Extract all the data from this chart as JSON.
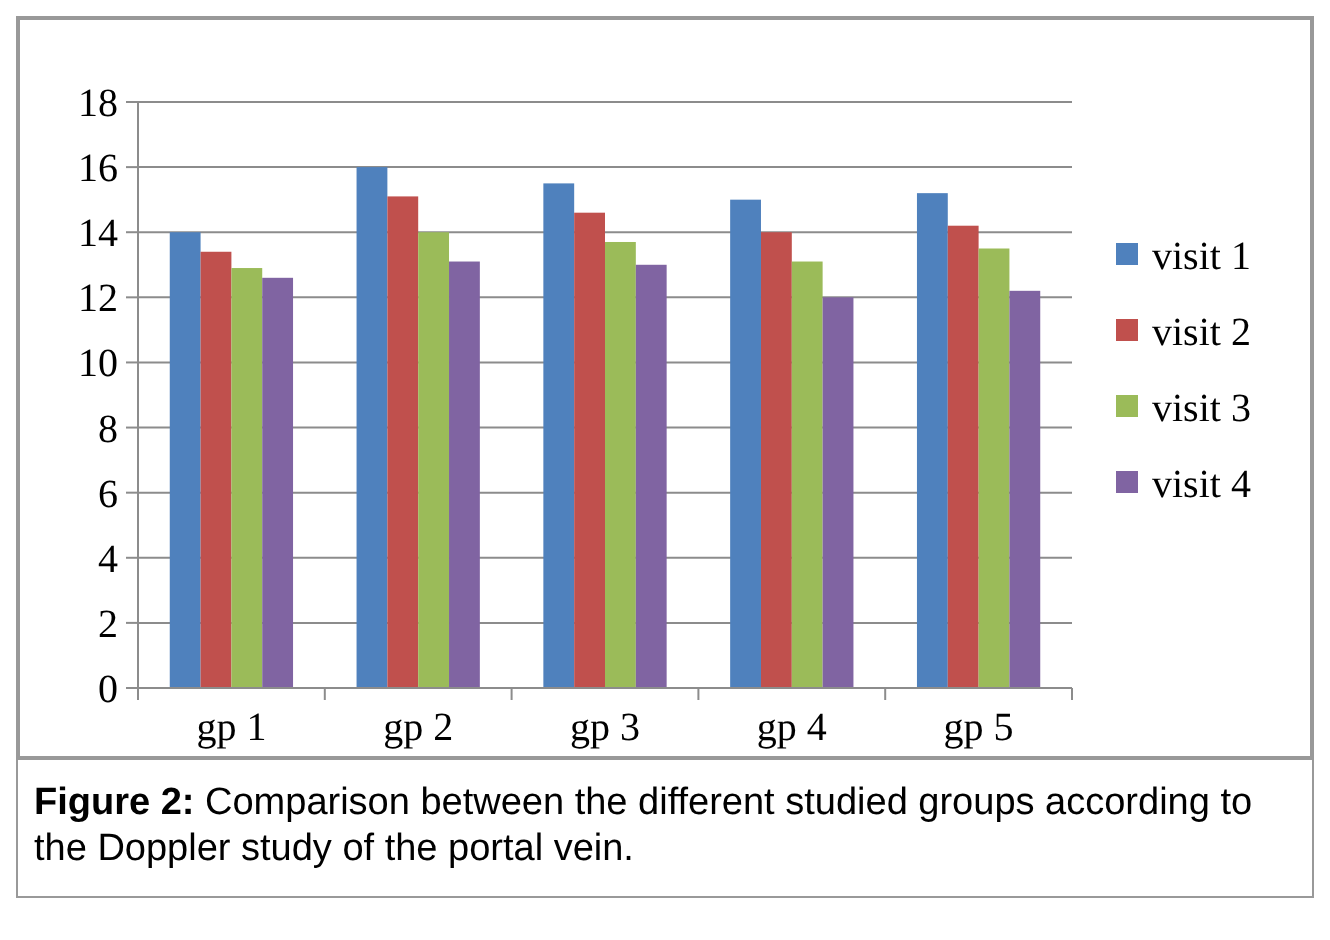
{
  "chart_data": {
    "type": "bar",
    "categories": [
      "gp 1",
      "gp 2",
      "gp 3",
      "gp 4",
      "gp 5"
    ],
    "series": [
      {
        "name": "visit 1",
        "color": "#4f81bd",
        "values": [
          14,
          16,
          15.5,
          15,
          15.2
        ]
      },
      {
        "name": "visit 2",
        "color": "#c0504d",
        "values": [
          13.4,
          15.1,
          14.6,
          14,
          14.2
        ]
      },
      {
        "name": "visit 3",
        "color": "#9bbb59",
        "values": [
          12.9,
          14,
          13.7,
          13.1,
          13.5
        ]
      },
      {
        "name": "visit 4",
        "color": "#8064a2",
        "values": [
          12.6,
          13.1,
          13,
          12,
          12.2
        ]
      }
    ],
    "ylim": [
      0,
      18
    ],
    "yticks": [
      0,
      2,
      4,
      6,
      8,
      10,
      12,
      14,
      16,
      18
    ],
    "grid": "y",
    "legend": "right",
    "annotations": [
      "Figure 2: Comparison between the different studied groups according to the Doppler study of the portal vein."
    ]
  }
}
